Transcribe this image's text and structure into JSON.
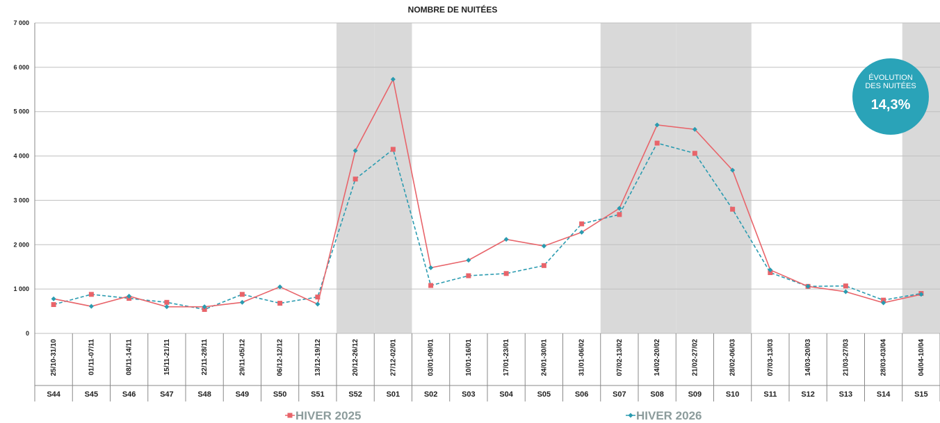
{
  "chart_data": {
    "type": "line",
    "title": "NOMBRE DE NUITÉES",
    "categories": [
      "S44",
      "S45",
      "S46",
      "S47",
      "S48",
      "S49",
      "S50",
      "S51",
      "S52",
      "S01",
      "S02",
      "S03",
      "S04",
      "S05",
      "S06",
      "S07",
      "S08",
      "S09",
      "S10",
      "S11",
      "S12",
      "S13",
      "S14",
      "S15"
    ],
    "date_labels": [
      "25/10-31/10",
      "01/11-07/11",
      "08/11-14/11",
      "15/11-21/11",
      "22/11-28/11",
      "29/11-05/12",
      "06/12-12/12",
      "13/12-19/12",
      "20/12-26/12",
      "27/12-02/01",
      "03/01-09/01",
      "10/01-16/01",
      "17/01-23/01",
      "24/01-30/01",
      "31/01-06/02",
      "07/02-13/02",
      "14/02-20/02",
      "21/02-27/02",
      "28/02-06/03",
      "07/03-13/03",
      "14/03-20/03",
      "21/03-27/03",
      "28/03-03/04",
      "04/04-10/04"
    ],
    "series": [
      {
        "name": "HIVER 2025",
        "color": "#e8646a",
        "line_color": "#2a9bb0",
        "line_style": "dashed",
        "marker": "square",
        "values": [
          650,
          880,
          790,
          700,
          540,
          880,
          680,
          820,
          3480,
          4150,
          1080,
          1300,
          1350,
          1530,
          2470,
          2680,
          4290,
          4060,
          2800,
          1370,
          1060,
          1070,
          750,
          900
        ]
      },
      {
        "name": "HIVER 2026",
        "color": "#2a9bb0",
        "line_color": "#e8646a",
        "line_style": "solid",
        "marker": "diamond",
        "values": [
          780,
          610,
          840,
          600,
          600,
          700,
          1050,
          660,
          4120,
          5730,
          1480,
          1650,
          2120,
          1970,
          2280,
          2820,
          4700,
          4600,
          3680,
          1430,
          1060,
          940,
          690,
          880
        ]
      }
    ],
    "ylim": [
      0,
      7000
    ],
    "yticks": [
      {
        "value": 0,
        "label": "0"
      },
      {
        "value": 1000,
        "label": "1 000"
      },
      {
        "value": 2000,
        "label": "2 000"
      },
      {
        "value": 3000,
        "label": "3 000"
      },
      {
        "value": 4000,
        "label": "4 000"
      },
      {
        "value": 5000,
        "label": "5 000"
      },
      {
        "value": 6000,
        "label": "6 000"
      },
      {
        "value": 7000,
        "label": "7 000"
      }
    ],
    "grid": true,
    "shaded_categories": [
      8,
      9,
      15,
      16,
      17,
      18,
      23
    ],
    "annotation": {
      "label": "ÉVOLUTION DES NUITÉES",
      "value": "14,3%",
      "color": "#2aa3b8"
    }
  }
}
